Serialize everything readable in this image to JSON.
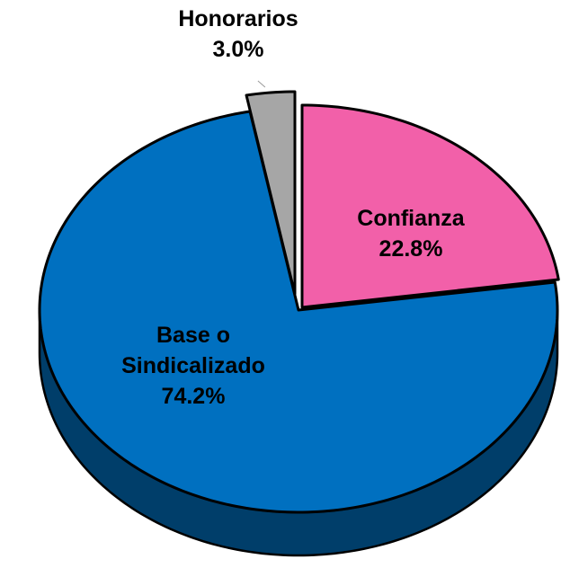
{
  "chart_data": {
    "type": "pie",
    "categories": [
      "Confianza",
      "Base o Sindicalizado",
      "Honorarios"
    ],
    "values": [
      22.8,
      74.2,
      3.0
    ],
    "value_labels": [
      "22.8%",
      "74.2%",
      "3.0%"
    ],
    "colors": [
      "#f260a9",
      "#0070c0",
      "#a6a6a6"
    ],
    "three_d": true
  }
}
